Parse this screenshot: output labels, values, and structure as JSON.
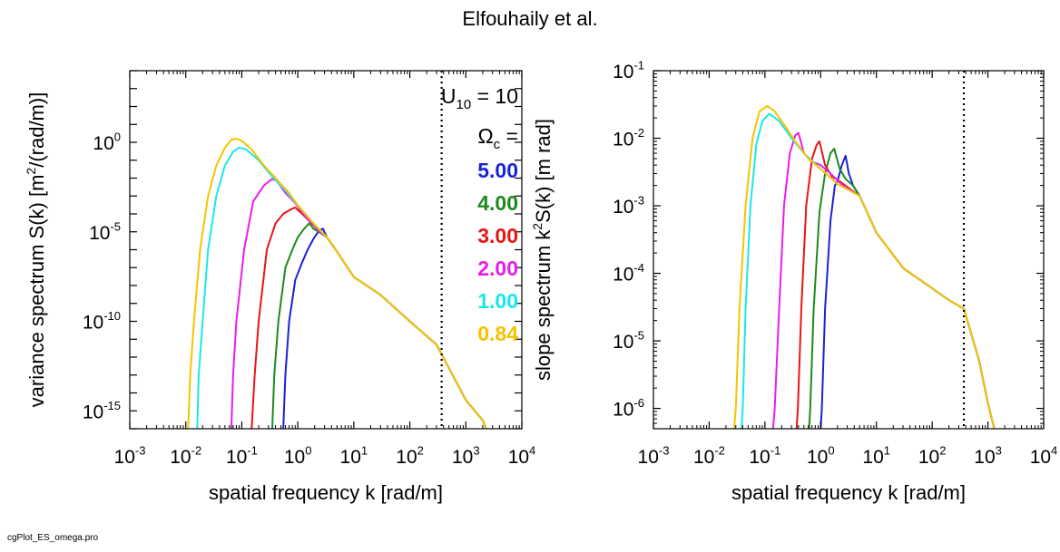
{
  "title": "Elfouhaily et al.",
  "footer": "cgPlot_ES_omega.pro",
  "colors": {
    "5.00": "#1a22d6",
    "4.00": "#1e8a1e",
    "3.00": "#e81515",
    "2.00": "#e81ee8",
    "1.00": "#1ae8e8",
    "0.84": "#f5c400"
  },
  "chart_data": [
    {
      "type": "line",
      "xlabel": "spatial frequency k [rad/m]",
      "ylabel_parts": [
        "variance spectrum S(k)  [m",
        "2",
        "/(rad/m)]"
      ],
      "x_scale": "log",
      "y_scale": "log",
      "xlim": [
        0.001,
        10000
      ],
      "ylim": [
        1e-16,
        10000.0
      ],
      "x_ticks": [
        {
          "base": "10",
          "exp": "-3"
        },
        {
          "base": "10",
          "exp": "-2"
        },
        {
          "base": "10",
          "exp": "-1"
        },
        {
          "base": "10",
          "exp": "0"
        },
        {
          "base": "10",
          "exp": "1"
        },
        {
          "base": "10",
          "exp": "2"
        },
        {
          "base": "10",
          "exp": "3"
        },
        {
          "base": "10",
          "exp": "4"
        }
      ],
      "y_ticks": [
        {
          "value": 1e-15,
          "base": "10",
          "exp": "-15"
        },
        {
          "value": 1e-10,
          "base": "10",
          "exp": "-10"
        },
        {
          "value": 1e-05,
          "base": "10",
          "exp": "-5"
        },
        {
          "value": 1,
          "base": "10",
          "exp": "0"
        }
      ],
      "vline_x": 370,
      "annotation": {
        "u10": {
          "base": "U",
          "sub": "10",
          "rest": " = 10"
        },
        "omega": {
          "base": "Ω",
          "sub": "c",
          "rest": " ="
        }
      },
      "legend_placement": "top-right",
      "series": [
        {
          "name": "5.00",
          "x": [
            0.55,
            0.6,
            0.7,
            0.9,
            1.2,
            1.5,
            1.9,
            2.2,
            2.5,
            2.8,
            3.3,
            5,
            10,
            30,
            100,
            300,
            1000,
            2000,
            2300
          ],
          "y": [
            1e-16,
            1e-13,
            1e-10,
            2e-08,
            2e-07,
            1e-06,
            4e-06,
            8e-06,
            1.2e-05,
            1.5e-05,
            5e-06,
            8e-07,
            3e-08,
            3e-09,
            1e-10,
            5e-12,
            4e-15,
            3e-16,
            1e-16
          ]
        },
        {
          "name": "4.00",
          "x": [
            0.35,
            0.38,
            0.45,
            0.6,
            0.8,
            1.0,
            1.3,
            1.6,
            1.9,
            2.5,
            3.3,
            5,
            10,
            30,
            100,
            300,
            1000,
            2000,
            2300
          ],
          "y": [
            1e-16,
            1e-13,
            1e-10,
            1e-07,
            1e-06,
            5e-06,
            1.5e-05,
            3e-05,
            1.5e-05,
            9e-06,
            5e-06,
            8e-07,
            3e-08,
            3e-09,
            1e-10,
            5e-12,
            4e-15,
            3e-16,
            1e-16
          ]
        },
        {
          "name": "3.00",
          "x": [
            0.15,
            0.17,
            0.2,
            0.28,
            0.4,
            0.55,
            0.75,
            0.9,
            1.2,
            1.6,
            2.5,
            3.3,
            5,
            10,
            30,
            100,
            300,
            1000,
            2000,
            2300
          ],
          "y": [
            1e-16,
            1e-13,
            1e-10,
            1e-06,
            3e-05,
            0.0001,
            0.00018,
            0.00023,
            0.0001,
            4e-05,
            1e-05,
            5e-06,
            8e-07,
            3e-08,
            3e-09,
            1e-10,
            5e-12,
            4e-15,
            3e-16,
            1e-16
          ]
        },
        {
          "name": "2.00",
          "x": [
            0.065,
            0.07,
            0.08,
            0.11,
            0.16,
            0.25,
            0.35,
            0.42,
            0.6,
            0.9,
            1.5,
            2.5,
            3.3,
            5,
            10,
            30,
            100,
            300,
            1000,
            2000,
            2300
          ],
          "y": [
            1e-16,
            1e-13,
            1e-10,
            1e-06,
            0.0005,
            0.004,
            0.009,
            0.007,
            0.0015,
            0.0004,
            5e-05,
            1e-05,
            5e-06,
            8e-07,
            3e-08,
            3e-09,
            1e-10,
            5e-12,
            4e-15,
            3e-16,
            1e-16
          ]
        },
        {
          "name": "1.00",
          "x": [
            0.016,
            0.017,
            0.02,
            0.025,
            0.035,
            0.05,
            0.07,
            0.09,
            0.12,
            0.2,
            0.35,
            0.6,
            1,
            2,
            3.3,
            5,
            10,
            30,
            100,
            300,
            1000,
            2000,
            2300
          ],
          "y": [
            1e-16,
            1e-13,
            1e-10,
            1e-06,
            0.001,
            0.05,
            0.3,
            0.5,
            0.4,
            0.1,
            0.012,
            0.002,
            0.0003,
            2.5e-05,
            5e-06,
            8e-07,
            3e-08,
            3e-09,
            1e-10,
            5e-12,
            4e-15,
            3e-16,
            1e-16
          ]
        },
        {
          "name": "0.84",
          "x": [
            0.011,
            0.012,
            0.014,
            0.018,
            0.025,
            0.035,
            0.05,
            0.065,
            0.08,
            0.1,
            0.15,
            0.25,
            0.4,
            0.7,
            1,
            2,
            3.3,
            5,
            10,
            30,
            100,
            300,
            1000,
            2000,
            2300
          ],
          "y": [
            1e-16,
            1e-13,
            1e-10,
            1e-06,
            0.001,
            0.05,
            0.5,
            1.4,
            1.6,
            1.2,
            0.4,
            0.05,
            0.01,
            0.0015,
            0.0003,
            2.5e-05,
            5e-06,
            8e-07,
            3e-08,
            3e-09,
            1e-10,
            5e-12,
            4e-15,
            3e-16,
            1e-16
          ]
        }
      ]
    },
    {
      "type": "line",
      "xlabel": "spatial frequency k [rad/m]",
      "ylabel_parts": [
        "slope spectrum k",
        "2",
        "S(k)  [m rad]"
      ],
      "x_scale": "log",
      "y_scale": "log",
      "xlim": [
        0.001,
        10000
      ],
      "ylim": [
        5e-07,
        0.1
      ],
      "x_ticks": [
        {
          "base": "10",
          "exp": "-3"
        },
        {
          "base": "10",
          "exp": "-2"
        },
        {
          "base": "10",
          "exp": "-1"
        },
        {
          "base": "10",
          "exp": "0"
        },
        {
          "base": "10",
          "exp": "1"
        },
        {
          "base": "10",
          "exp": "2"
        },
        {
          "base": "10",
          "exp": "3"
        },
        {
          "base": "10",
          "exp": "4"
        }
      ],
      "y_ticks": [
        {
          "value": 1e-06,
          "base": "10",
          "exp": "-6"
        },
        {
          "value": 1e-05,
          "base": "10",
          "exp": "-5"
        },
        {
          "value": 0.0001,
          "base": "10",
          "exp": "-4"
        },
        {
          "value": 0.001,
          "base": "10",
          "exp": "-3"
        },
        {
          "value": 0.01,
          "base": "10",
          "exp": "-2"
        },
        {
          "value": 0.1,
          "base": "10",
          "exp": "-1"
        }
      ],
      "vline_x": 370,
      "series": [
        {
          "name": "5.00",
          "x": [
            1.0,
            1.05,
            1.2,
            1.5,
            1.8,
            2.0,
            2.4,
            2.8,
            3.2,
            3.8,
            5,
            10,
            30,
            100,
            200,
            370,
            700,
            1000,
            1300
          ],
          "y": [
            5e-07,
            1e-06,
            3e-05,
            0.0006,
            0.002,
            0.0023,
            0.004,
            0.0055,
            0.003,
            0.002,
            0.0014,
            0.0004,
            0.00012,
            6e-05,
            4e-05,
            3e-05,
            5e-06,
            1.2e-06,
            5e-07
          ]
        },
        {
          "name": "4.00",
          "x": [
            0.62,
            0.65,
            0.75,
            0.95,
            1.2,
            1.5,
            1.75,
            2.2,
            2.8,
            3.8,
            5,
            10,
            30,
            100,
            200,
            370,
            700,
            1000,
            1300
          ],
          "y": [
            5e-07,
            1e-06,
            3e-05,
            0.0008,
            0.003,
            0.006,
            0.007,
            0.0035,
            0.0025,
            0.002,
            0.0014,
            0.0004,
            0.00012,
            6e-05,
            4e-05,
            3e-05,
            5e-06,
            1.2e-06,
            5e-07
          ]
        },
        {
          "name": "3.00",
          "x": [
            0.37,
            0.39,
            0.45,
            0.55,
            0.7,
            0.85,
            0.95,
            1.2,
            1.6,
            2.2,
            3,
            5,
            10,
            30,
            100,
            200,
            370,
            700,
            1000,
            1300
          ],
          "y": [
            5e-07,
            1e-06,
            3e-05,
            0.001,
            0.005,
            0.008,
            0.009,
            0.004,
            0.0027,
            0.0023,
            0.0019,
            0.0014,
            0.0004,
            0.00012,
            6e-05,
            4e-05,
            3e-05,
            5e-06,
            1.2e-06,
            5e-07
          ]
        },
        {
          "name": "2.00",
          "x": [
            0.14,
            0.15,
            0.18,
            0.22,
            0.28,
            0.35,
            0.4,
            0.5,
            0.7,
            1,
            1.5,
            2.5,
            5,
            10,
            30,
            100,
            200,
            370,
            700,
            1000,
            1300
          ],
          "y": [
            5e-07,
            1e-06,
            3e-05,
            0.001,
            0.006,
            0.011,
            0.012,
            0.006,
            0.0045,
            0.004,
            0.003,
            0.002,
            0.0014,
            0.0004,
            0.00012,
            6e-05,
            4e-05,
            3e-05,
            5e-06,
            1.2e-06,
            5e-07
          ]
        },
        {
          "name": "1.00",
          "x": [
            0.038,
            0.04,
            0.045,
            0.055,
            0.07,
            0.09,
            0.12,
            0.18,
            0.3,
            0.5,
            1,
            2,
            5,
            10,
            30,
            100,
            200,
            370,
            700,
            1000,
            1300
          ],
          "y": [
            5e-07,
            1e-06,
            3e-05,
            0.001,
            0.008,
            0.018,
            0.023,
            0.018,
            0.01,
            0.006,
            0.0035,
            0.0021,
            0.0014,
            0.0004,
            0.00012,
            6e-05,
            4e-05,
            3e-05,
            5e-06,
            1.2e-06,
            5e-07
          ]
        },
        {
          "name": "0.84",
          "x": [
            0.028,
            0.03,
            0.035,
            0.045,
            0.06,
            0.08,
            0.11,
            0.15,
            0.22,
            0.35,
            0.6,
            1,
            2,
            5,
            10,
            30,
            100,
            200,
            370,
            700,
            1000,
            1300
          ],
          "y": [
            5e-07,
            1e-06,
            3e-05,
            0.001,
            0.01,
            0.025,
            0.03,
            0.025,
            0.016,
            0.009,
            0.005,
            0.0035,
            0.0021,
            0.0014,
            0.0004,
            0.00012,
            6e-05,
            4e-05,
            3e-05,
            5e-06,
            1.2e-06,
            5e-07
          ]
        }
      ]
    }
  ]
}
